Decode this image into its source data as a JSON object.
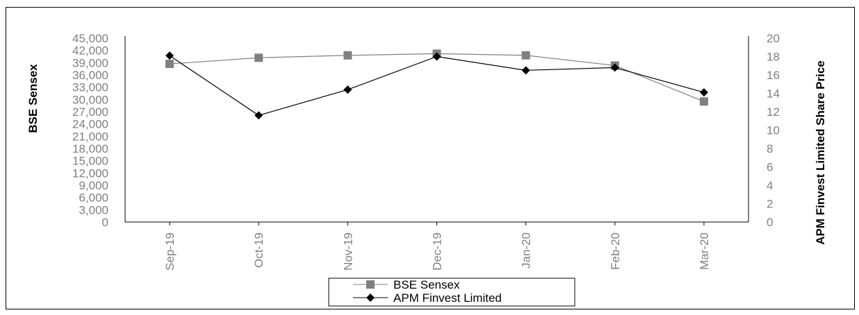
{
  "chart_data": {
    "type": "line",
    "categories": [
      "Sep-19",
      "Oct-19",
      "Nov-19",
      "Dec-19",
      "Jan-20",
      "Feb-20",
      "Mar-20"
    ],
    "y_left": {
      "label": "BSE Sensex",
      "ylim": [
        0,
        45000
      ],
      "ticks": [
        "45,000",
        "42,000",
        "39,000",
        "36,000",
        "33,000",
        "30,000",
        "27,000",
        "24,000",
        "21,000",
        "18,000",
        "15,000",
        "12,000",
        "9,000",
        "6,000",
        "3,000",
        "0"
      ]
    },
    "y_right": {
      "label": "APM Finvest Limited Share Price",
      "ylim": [
        0,
        20
      ],
      "ticks": [
        "20",
        "18",
        "16",
        "14",
        "12",
        "10",
        "8",
        "6",
        "4",
        "2",
        "0"
      ]
    },
    "series": [
      {
        "name": "BSE Sensex",
        "axis": "left",
        "marker": "square",
        "color": "#808080",
        "values": [
          38700,
          40200,
          40800,
          41200,
          40800,
          38300,
          29500
        ]
      },
      {
        "name": "APM Finvest Limited",
        "axis": "right",
        "marker": "diamond",
        "color": "#000000",
        "values": [
          18.1,
          11.6,
          14.4,
          18.0,
          16.5,
          16.8,
          14.1
        ]
      }
    ],
    "legend_position": "bottom-center",
    "grid": false
  }
}
